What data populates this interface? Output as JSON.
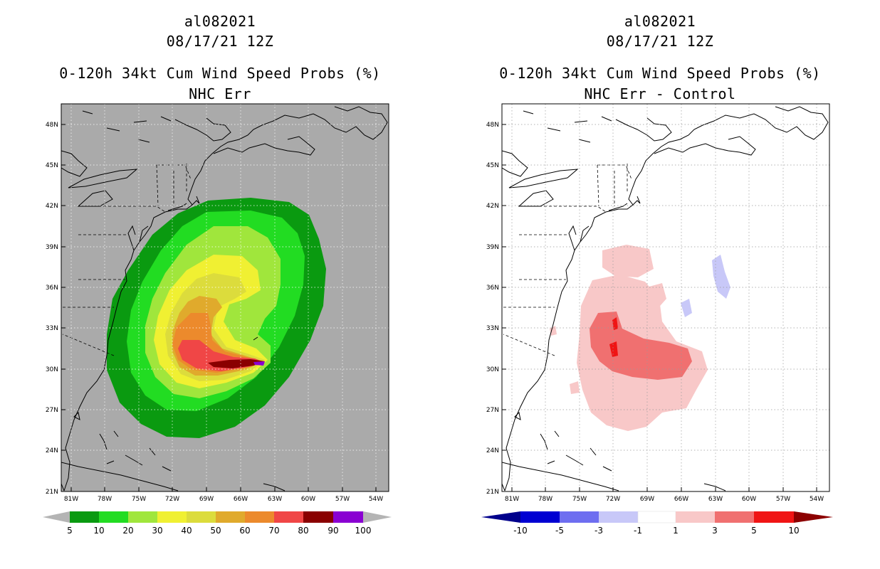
{
  "panels": [
    {
      "storm_id": "al082021",
      "datetime": "08/17/21 12Z",
      "product": "0-120h 34kt Cum Wind Speed Probs (%)",
      "subtitle": "NHC Err",
      "background": "#aaaaaa",
      "colorbar": {
        "labels": [
          "5",
          "10",
          "20",
          "30",
          "40",
          "50",
          "60",
          "70",
          "80",
          "90",
          "100"
        ],
        "colors": [
          "#0a9a10",
          "#22dc22",
          "#a0e63c",
          "#f0f032",
          "#dcdc3c",
          "#e0aa2c",
          "#ec8a2c",
          "#f04646",
          "#8a0000",
          "#8a00d2"
        ],
        "end_color": "#b4b4b4"
      }
    },
    {
      "storm_id": "al082021",
      "datetime": "08/17/21 12Z",
      "product": "0-120h 34kt Cum Wind Speed Probs (%)",
      "subtitle": "NHC Err - Control",
      "background": "#ffffff",
      "colorbar": {
        "labels": [
          "-10",
          "-5",
          "-3",
          "-1",
          "1",
          "3",
          "5",
          "10"
        ],
        "colors": [
          "#0000d2",
          "#6e6ef0",
          "#c8c8f8",
          "#ffffff",
          "#f8c8c8",
          "#f07070",
          "#f01414"
        ],
        "left_end": "#00008c",
        "right_end": "#8c0000"
      }
    }
  ],
  "axes": {
    "lat_labels": [
      "48N",
      "45N",
      "42N",
      "39N",
      "36N",
      "33N",
      "30N",
      "27N",
      "24N",
      "21N"
    ],
    "lon_labels": [
      "81W",
      "78W",
      "75W",
      "72W",
      "69W",
      "66W",
      "63W",
      "60W",
      "57W",
      "54W"
    ]
  },
  "field_colors": {
    "c5": "#0a9a10",
    "c10": "#22dc22",
    "c20": "#a0e63c",
    "c30": "#f0f032",
    "c40": "#dcdc3c",
    "c50": "#e0aa2c",
    "c60": "#ec8a2c",
    "c70": "#f04646",
    "c80": "#f04646",
    "c90": "#8a0000",
    "c100": "#8a00d2",
    "d1": "#f8c8c8",
    "d3": "#f07070",
    "d5": "#f01414",
    "dneg": "#c8c8f8"
  }
}
